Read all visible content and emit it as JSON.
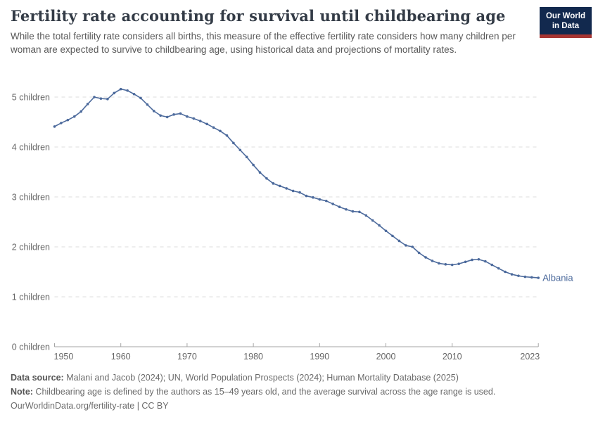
{
  "header": {
    "title": "Fertility rate accounting for survival until childbearing age",
    "subtitle": "While the total fertility rate considers all births, this measure of the effective fertility rate considers how many children per woman are expected to survive to childbearing age, using historical data and projections of mortality rates.",
    "logo": {
      "line1": "Our World",
      "line2": "in Data",
      "bg_color": "#12294e",
      "accent_color": "#a73532"
    }
  },
  "chart_data": {
    "type": "line",
    "title": "Fertility rate accounting for survival until childbearing age",
    "xlabel": "",
    "ylabel": "",
    "x_ticks": [
      1950,
      1960,
      1970,
      1980,
      1990,
      2000,
      2010,
      2023
    ],
    "x_range": [
      1950,
      2023
    ],
    "y_ticks": [
      0,
      1,
      2,
      3,
      4,
      5
    ],
    "y_tick_labels": [
      "0 children",
      "1 children",
      "2 children",
      "3 children",
      "4 children",
      "5 children"
    ],
    "y_range": [
      0,
      5.3
    ],
    "grid": "dashed-horizontal",
    "legend_position": "end-of-line-label",
    "series": [
      {
        "name": "Albania",
        "color": "#4c6a9c",
        "points": [
          [
            1950,
            4.41
          ],
          [
            1951,
            4.48
          ],
          [
            1952,
            4.54
          ],
          [
            1953,
            4.61
          ],
          [
            1954,
            4.71
          ],
          [
            1955,
            4.86
          ],
          [
            1956,
            5.0
          ],
          [
            1957,
            4.97
          ],
          [
            1958,
            4.96
          ],
          [
            1959,
            5.08
          ],
          [
            1960,
            5.16
          ],
          [
            1961,
            5.13
          ],
          [
            1962,
            5.06
          ],
          [
            1963,
            4.98
          ],
          [
            1964,
            4.85
          ],
          [
            1965,
            4.72
          ],
          [
            1966,
            4.63
          ],
          [
            1967,
            4.6
          ],
          [
            1968,
            4.65
          ],
          [
            1969,
            4.67
          ],
          [
            1970,
            4.61
          ],
          [
            1971,
            4.57
          ],
          [
            1972,
            4.52
          ],
          [
            1973,
            4.46
          ],
          [
            1974,
            4.39
          ],
          [
            1975,
            4.32
          ],
          [
            1976,
            4.23
          ],
          [
            1977,
            4.08
          ],
          [
            1978,
            3.94
          ],
          [
            1979,
            3.8
          ],
          [
            1980,
            3.64
          ],
          [
            1981,
            3.49
          ],
          [
            1982,
            3.37
          ],
          [
            1983,
            3.27
          ],
          [
            1984,
            3.22
          ],
          [
            1985,
            3.17
          ],
          [
            1986,
            3.12
          ],
          [
            1987,
            3.09
          ],
          [
            1988,
            3.02
          ],
          [
            1989,
            2.99
          ],
          [
            1990,
            2.95
          ],
          [
            1991,
            2.92
          ],
          [
            1992,
            2.86
          ],
          [
            1993,
            2.8
          ],
          [
            1994,
            2.75
          ],
          [
            1995,
            2.71
          ],
          [
            1996,
            2.7
          ],
          [
            1997,
            2.63
          ],
          [
            1998,
            2.53
          ],
          [
            1999,
            2.43
          ],
          [
            2000,
            2.32
          ],
          [
            2001,
            2.22
          ],
          [
            2002,
            2.12
          ],
          [
            2003,
            2.03
          ],
          [
            2004,
            2.0
          ],
          [
            2005,
            1.88
          ],
          [
            2006,
            1.79
          ],
          [
            2007,
            1.72
          ],
          [
            2008,
            1.67
          ],
          [
            2009,
            1.65
          ],
          [
            2010,
            1.64
          ],
          [
            2011,
            1.66
          ],
          [
            2012,
            1.7
          ],
          [
            2013,
            1.74
          ],
          [
            2014,
            1.75
          ],
          [
            2015,
            1.71
          ],
          [
            2016,
            1.64
          ],
          [
            2017,
            1.57
          ],
          [
            2018,
            1.5
          ],
          [
            2019,
            1.45
          ],
          [
            2020,
            1.42
          ],
          [
            2021,
            1.4
          ],
          [
            2022,
            1.39
          ],
          [
            2023,
            1.38
          ]
        ]
      }
    ],
    "colors": {
      "gridline": "#dcdcdc",
      "axis": "#a5a5a5",
      "tick_label": "#666666"
    }
  },
  "footer": {
    "data_source_label": "Data source:",
    "data_source": " Malani and Jacob (2024); UN, World Population Prospects (2024); Human Mortality Database (2025)",
    "note_label": "Note:",
    "note": " Childbearing age is defined by the authors as 15–49 years old, and the average survival across the age range is used.",
    "url_line": "OurWorldinData.org/fertility-rate | CC BY"
  }
}
